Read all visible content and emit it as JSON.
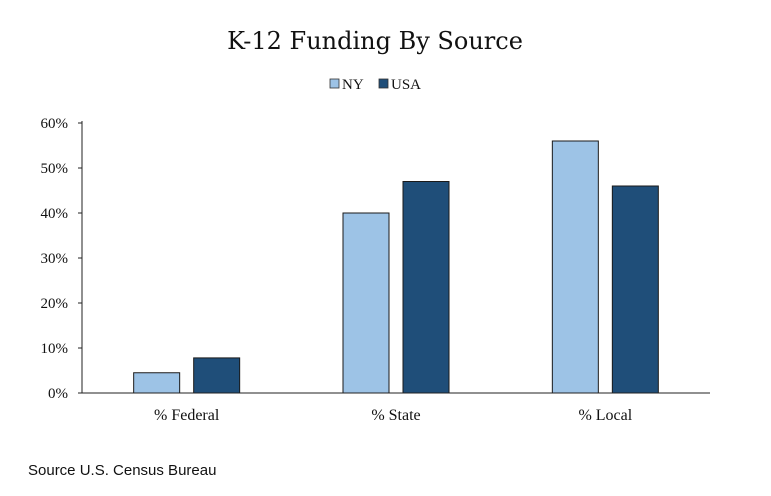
{
  "chart_data": {
    "type": "bar",
    "title": "K-12 Funding By Source",
    "categories": [
      "% Federal",
      "% State",
      "% Local"
    ],
    "series": [
      {
        "name": "NY",
        "values": [
          4.5,
          40,
          56
        ],
        "color": "#9dc3e6"
      },
      {
        "name": "USA",
        "values": [
          7.8,
          47,
          46
        ],
        "color": "#1f4e79"
      }
    ],
    "ylim": [
      0,
      60
    ],
    "yticks": [
      0,
      10,
      20,
      30,
      40,
      50,
      60
    ],
    "ytick_labels": [
      "0%",
      "10%",
      "20%",
      "30%",
      "40%",
      "50%",
      "60%"
    ],
    "xlabel": "",
    "ylabel": "",
    "legend_position": "top-center",
    "grid": false
  },
  "source": "Source U.S. Census Bureau"
}
